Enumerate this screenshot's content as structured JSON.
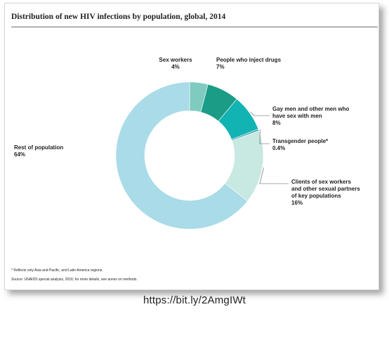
{
  "chart_data": {
    "type": "pie",
    "title": "Distribution of new HIV infections by population, global, 2014",
    "slices": [
      {
        "label": "Sex workers",
        "value": 4,
        "value_label": "4%",
        "color": "#7fcbc0"
      },
      {
        "label": "People who inject drugs",
        "value": 7,
        "value_label": "7%",
        "color": "#1a9c86"
      },
      {
        "label": "Gay men and other men who have sex with men",
        "value": 8,
        "value_label": "8%",
        "color": "#12b3b3"
      },
      {
        "label": "Transgender people*",
        "value": 0.4,
        "value_label": "0.4%",
        "color": "#3aa8b5"
      },
      {
        "label": "Clients of sex workers and other sexual partners of key populations",
        "value": 16,
        "value_label": "16%",
        "color": "#c8e8e2"
      },
      {
        "label": "Rest of population",
        "value": 64,
        "value_label": "64%",
        "color": "#a9dbe8"
      }
    ]
  },
  "footnotes": {
    "note": "* Reflects only Asia and Pacific, and Latin America regions.",
    "source": "Source: UNAIDS special analysis, 2016; for more details, see annex on methods."
  },
  "url": "https://bit.ly/2AmgIWt"
}
